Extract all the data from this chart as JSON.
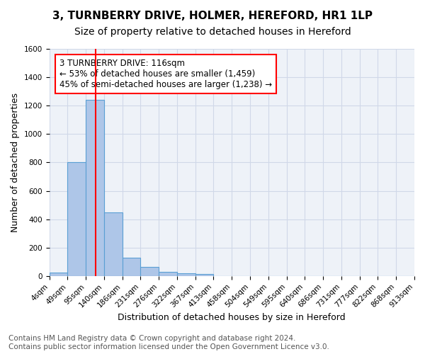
{
  "title": "3, TURNBERRY DRIVE, HOLMER, HEREFORD, HR1 1LP",
  "subtitle": "Size of property relative to detached houses in Hereford",
  "xlabel": "Distribution of detached houses by size in Hereford",
  "ylabel": "Number of detached properties",
  "bin_labels": [
    "4sqm",
    "49sqm",
    "95sqm",
    "140sqm",
    "186sqm",
    "231sqm",
    "276sqm",
    "322sqm",
    "367sqm",
    "413sqm",
    "458sqm",
    "504sqm",
    "549sqm",
    "595sqm",
    "640sqm",
    "686sqm",
    "731sqm",
    "777sqm",
    "822sqm",
    "868sqm",
    "913sqm"
  ],
  "bar_heights": [
    25,
    800,
    1240,
    450,
    130,
    62,
    28,
    18,
    15,
    0,
    0,
    0,
    0,
    0,
    0,
    0,
    0,
    0,
    0,
    0
  ],
  "bar_color": "#aec6e8",
  "bar_edge_color": "#5a9fd4",
  "vline_x": 2.53,
  "vline_color": "red",
  "annotation_text": "3 TURNBERRY DRIVE: 116sqm\n← 53% of detached houses are smaller (1,459)\n45% of semi-detached houses are larger (1,238) →",
  "annotation_box_color": "white",
  "annotation_box_edge_color": "red",
  "annotation_fontsize": 8.5,
  "ylim": [
    0,
    1600
  ],
  "yticks": [
    0,
    200,
    400,
    600,
    800,
    1000,
    1200,
    1400,
    1600
  ],
  "grid_color": "#d0d8e8",
  "background_color": "#eef2f8",
  "footer_line1": "Contains HM Land Registry data © Crown copyright and database right 2024.",
  "footer_line2": "Contains public sector information licensed under the Open Government Licence v3.0.",
  "title_fontsize": 11,
  "subtitle_fontsize": 10,
  "xlabel_fontsize": 9,
  "ylabel_fontsize": 9,
  "tick_fontsize": 7.5,
  "footer_fontsize": 7.5
}
